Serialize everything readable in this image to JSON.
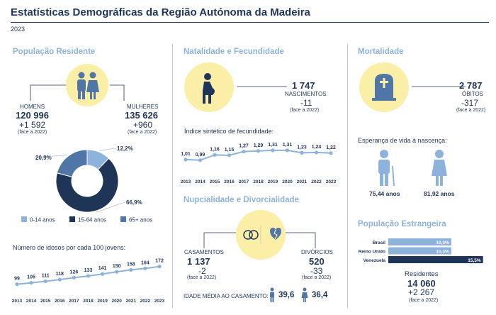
{
  "header": {
    "title": "Estatísticas Demográficas da Região Autónoma da Madeira",
    "year": "2023"
  },
  "population": {
    "section_title": "População Residente",
    "men_label": "HOMENS",
    "men_value": "120 996",
    "men_delta": "+1 592",
    "men_note": "(face a 2022)",
    "women_label": "MULHERES",
    "women_value": "135 626",
    "women_delta": "+960",
    "women_note": "(face a 2022)"
  },
  "births": {
    "section_title": "Natalidade e Fecundidade",
    "value": "1 747",
    "label": "NASCIMENTOS",
    "delta": "-11",
    "note": "(face a 2022)",
    "fertility_title": "Índice sintético de fecundidade:"
  },
  "mortality": {
    "section_title": "Mortalidade",
    "value": "2 787",
    "label": "ÓBITOS",
    "delta": "-317",
    "note": "(face a 2022)",
    "life_title": "Esperança de vida à nascença:",
    "life_men": "75,44 anos",
    "life_women": "81,92 anos"
  },
  "marriage": {
    "section_title": "Nupcialidade e Divorcialidade",
    "marriages_label": "CASAMENTOS",
    "marriages_value": "1 137",
    "marriages_delta": "-2",
    "marriages_note": "(face a 2022)",
    "divorces_label": "DIVÓRCIOS",
    "divorces_value": "520",
    "divorces_delta": "-33",
    "divorces_note": "(face a 2022)",
    "avg_age_label": "IDADE MÉDIA AO CASAMENTO:",
    "avg_age_men": "39,6",
    "avg_age_women": "36,4"
  },
  "foreign": {
    "section_title": "População Estrangeira",
    "residents_label": "Residentes",
    "residents_value": "14 060",
    "residents_delta": "+2 267",
    "residents_note": "(face a 2022)"
  },
  "colors": {
    "dark": "#1f3558",
    "mid": "#4f76a6",
    "light": "#8db3dc",
    "yellow": "#fbeea6"
  },
  "chart_data": [
    {
      "type": "pie",
      "title": "",
      "categories": [
        "0-14 anos",
        "15-64 anos",
        "65+ anos"
      ],
      "values": [
        12.2,
        66.9,
        20.9
      ],
      "labels": [
        "12,2%",
        "66,9%",
        "20,9%"
      ],
      "colors": [
        "#8db3dc",
        "#1f3558",
        "#4f76a6"
      ]
    },
    {
      "type": "line",
      "title": "Índice sintético de fecundidade:",
      "x": [
        "2013",
        "2014",
        "2015",
        "2016",
        "2017",
        "2018",
        "2019",
        "2020",
        "2021",
        "2022",
        "2023"
      ],
      "values": [
        1.01,
        0.99,
        1.16,
        1.15,
        1.27,
        1.29,
        1.31,
        1.31,
        1.23,
        1.24,
        1.22
      ],
      "labels": [
        "1,01",
        "0,99",
        "1,16",
        "1,15",
        "1,27",
        "1,29",
        "1,31",
        "1,31",
        "1,23",
        "1,24",
        "1,22"
      ],
      "ylim": [
        0.8,
        1.4
      ]
    },
    {
      "type": "line",
      "title": "Número de idosos por cada 100 jovens:",
      "x": [
        "2013",
        "2014",
        "2015",
        "2016",
        "2017",
        "2018",
        "2019",
        "2020",
        "2021",
        "2022",
        "2023"
      ],
      "values": [
        99,
        105,
        111,
        118,
        126,
        133,
        141,
        150,
        158,
        164,
        172
      ],
      "ylim": [
        60,
        200
      ]
    },
    {
      "type": "bar",
      "title": "População Estrangeira",
      "categories": [
        "Brasil",
        "Reino Unido",
        "Venezuela"
      ],
      "values": [
        10.3,
        10.3,
        15.5
      ],
      "labels": [
        "10,3%",
        "10,3%",
        "15,5%"
      ],
      "xlim": [
        0,
        16
      ]
    }
  ]
}
